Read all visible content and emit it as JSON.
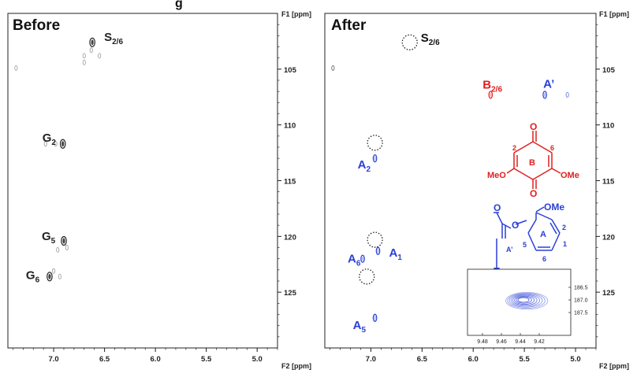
{
  "chart_data": [
    {
      "type": "heatmap",
      "title": "Before",
      "xlabel": "F2 [ppm]",
      "ylabel": "F1 [ppm]",
      "xlim": [
        7.45,
        4.8
      ],
      "ylim": [
        100,
        130
      ],
      "xticks": [
        "7.0",
        "6.5",
        "6.0",
        "5.5",
        "5.0"
      ],
      "yticks": [
        "105",
        "110",
        "115",
        "120",
        "125"
      ],
      "peaks": [
        {
          "label": "S",
          "sub": "2/6",
          "x": 6.62,
          "y": 102.6,
          "color": "#222222"
        },
        {
          "label": "G",
          "sub": "2",
          "x": 6.91,
          "y": 111.7,
          "color": "#222222"
        },
        {
          "label": "G",
          "sub": "5",
          "x": 6.9,
          "y": 120.4,
          "color": "#222222"
        },
        {
          "label": "G",
          "sub": "6",
          "x": 7.04,
          "y": 123.6,
          "color": "#222222"
        }
      ],
      "minor_peaks": [
        {
          "x": 6.63,
          "y": 103.3
        },
        {
          "x": 6.7,
          "y": 103.8
        },
        {
          "x": 6.55,
          "y": 103.8
        },
        {
          "x": 7.37,
          "y": 104.9
        },
        {
          "x": 6.7,
          "y": 104.4
        },
        {
          "x": 6.98,
          "y": 111.7
        },
        {
          "x": 7.08,
          "y": 111.7
        },
        {
          "x": 6.87,
          "y": 121.0
        },
        {
          "x": 6.96,
          "y": 121.2
        },
        {
          "x": 6.94,
          "y": 123.6
        },
        {
          "x": 7.0,
          "y": 123.1
        }
      ]
    },
    {
      "type": "heatmap",
      "title": "After",
      "xlabel": "F2 [ppm]",
      "ylabel": "F1 [ppm]",
      "xlim": [
        7.45,
        4.8
      ],
      "ylim": [
        100,
        130
      ],
      "xticks": [
        "7.0",
        "6.5",
        "6.0",
        "5.5",
        "5.0"
      ],
      "yticks": [
        "105",
        "110",
        "115",
        "120",
        "125"
      ],
      "peaks": [
        {
          "label": "B",
          "sub": "2/6",
          "x": 5.83,
          "y": 107.3,
          "color": "#e02020"
        },
        {
          "label": "A’",
          "sub": "",
          "x": 5.3,
          "y": 107.3,
          "color": "#2a3fd6"
        },
        {
          "label": "A",
          "sub": "2",
          "x": 6.96,
          "y": 113.0,
          "color": "#2a3fd6"
        },
        {
          "label": "A",
          "sub": "1",
          "x": 6.93,
          "y": 121.3,
          "color": "#2a3fd6"
        },
        {
          "label": "A",
          "sub": "6",
          "x": 7.08,
          "y": 122.0,
          "color": "#2a3fd6"
        },
        {
          "label": "A",
          "sub": "5",
          "x": 6.96,
          "y": 127.3,
          "color": "#2a3fd6"
        }
      ],
      "minor_peaks": [
        {
          "x": 5.08,
          "y": 107.3,
          "color": "#2a3fd6"
        },
        {
          "x": 7.37,
          "y": 104.9,
          "color": "#222222"
        }
      ],
      "removed_peaks": [
        {
          "label": "S",
          "sub": "2/6",
          "x": 6.62,
          "y": 102.6
        },
        {
          "x": 6.96,
          "y": 111.6
        },
        {
          "x": 6.96,
          "y": 120.3
        },
        {
          "x": 7.04,
          "y": 123.6
        }
      ],
      "inset": {
        "xticks": [
          "9.48",
          "9.46",
          "9.44",
          "9.42"
        ],
        "yticks": [
          "186.5",
          "187.0",
          "187.5"
        ],
        "color": "#2a3fd6"
      },
      "structures": {
        "quinone": {
          "ring": "B",
          "positions": [
            "2",
            "6"
          ],
          "substituents": [
            "MeO",
            "OMe"
          ],
          "atoms": [
            "O",
            "O"
          ],
          "color": "#e02020"
        },
        "aryl_ether": {
          "ring": "A",
          "positions": [
            "2",
            "5",
            "1",
            "6"
          ],
          "substituent": "OMe",
          "atoms": [
            "O",
            "O"
          ],
          "vinyl_label": "A’",
          "color": "#2a3fd6"
        }
      }
    }
  ],
  "header_fragment": "g"
}
